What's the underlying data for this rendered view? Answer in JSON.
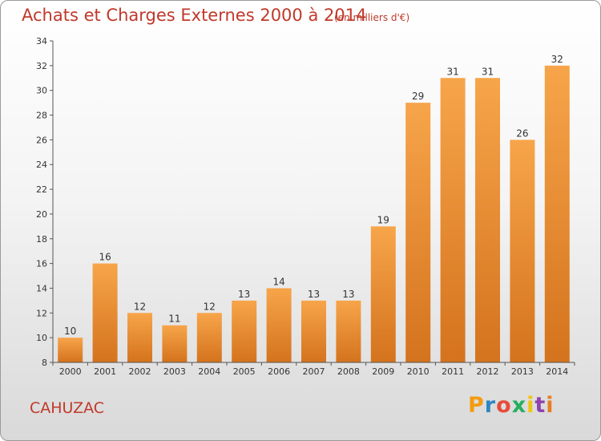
{
  "header": {
    "title": "Achats et Charges Externes 2000 à 2014",
    "unit": "(en milliers d'€)"
  },
  "footer": {
    "commune": "CAHUZAC",
    "logo": {
      "letters": [
        "P",
        "r",
        "o",
        "x",
        "i",
        "t",
        "i"
      ],
      "colors": [
        "#f39c12",
        "#2e86c1",
        "#e74c3c",
        "#27ae60",
        "#f1c40f",
        "#8e44ad",
        "#e67e22"
      ]
    }
  },
  "colors": {
    "bar_top": "#f7a54a",
    "bar_bottom": "#d4731d",
    "title": "#c0392b"
  },
  "chart_data": {
    "type": "bar",
    "title": "Achats et Charges Externes 2000 à 2014",
    "subtitle": "(en milliers d'€)",
    "categories": [
      "2000",
      "2001",
      "2002",
      "2003",
      "2004",
      "2005",
      "2006",
      "2007",
      "2008",
      "2009",
      "2010",
      "2011",
      "2012",
      "2013",
      "2014"
    ],
    "values": [
      10,
      16,
      12,
      11,
      12,
      13,
      14,
      13,
      13,
      19,
      29,
      31,
      31,
      26,
      32
    ],
    "ylim": [
      8,
      34
    ],
    "yticks": [
      8,
      10,
      12,
      14,
      16,
      18,
      20,
      22,
      24,
      26,
      28,
      30,
      32,
      34
    ],
    "grid": false,
    "legend": "none"
  }
}
